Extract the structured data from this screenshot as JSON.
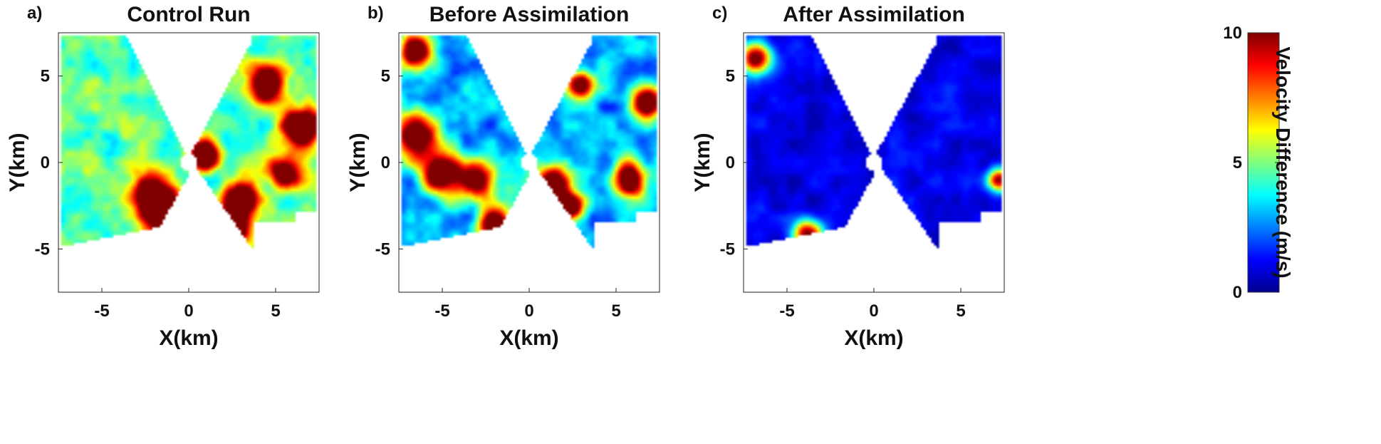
{
  "chart_data": {
    "panels": [
      {
        "type": "heatmap",
        "label": "a)",
        "title": "Control Run",
        "xlabel": "X(km)",
        "ylabel": "Y(km)",
        "xlim": [
          -7.5,
          7.5
        ],
        "ylim": [
          -7.5,
          7.5
        ],
        "xticks": [
          -5,
          0,
          5
        ],
        "yticks": [
          -5,
          0,
          5
        ],
        "field_level": "high",
        "hotspots": [
          {
            "x": -2.0,
            "y": -2.0,
            "r": 1.4,
            "v": 10
          },
          {
            "x": -1.2,
            "y": -3.4,
            "r": 0.9,
            "v": 10
          },
          {
            "x": 0.9,
            "y": 0.4,
            "r": 0.9,
            "v": 10
          },
          {
            "x": 2.6,
            "y": -3.6,
            "r": 0.9,
            "v": 10
          },
          {
            "x": 3.0,
            "y": -2.0,
            "r": 1.0,
            "v": 9
          },
          {
            "x": 4.5,
            "y": 4.5,
            "r": 1.1,
            "v": 9
          },
          {
            "x": 6.5,
            "y": 2.0,
            "r": 1.2,
            "v": 10
          },
          {
            "x": 5.5,
            "y": -0.5,
            "r": 1.0,
            "v": 8
          }
        ]
      },
      {
        "type": "heatmap",
        "label": "b)",
        "title": "Before Assimilation",
        "xlabel": "X(km)",
        "ylabel": "Y(km)",
        "xlim": [
          -7.5,
          7.5
        ],
        "ylim": [
          -7.5,
          7.5
        ],
        "xticks": [
          -5,
          0,
          5
        ],
        "yticks": [
          -5,
          0,
          5
        ],
        "field_level": "medium",
        "hotspots": [
          {
            "x": -6.5,
            "y": 1.5,
            "r": 1.3,
            "v": 10
          },
          {
            "x": -5.0,
            "y": -0.6,
            "r": 1.2,
            "v": 10
          },
          {
            "x": -3.0,
            "y": -1.0,
            "r": 1.1,
            "v": 9
          },
          {
            "x": -2.0,
            "y": -3.6,
            "r": 1.0,
            "v": 10
          },
          {
            "x": -6.5,
            "y": 6.5,
            "r": 1.0,
            "v": 10
          },
          {
            "x": 1.4,
            "y": -1.2,
            "r": 1.1,
            "v": 10
          },
          {
            "x": 2.4,
            "y": -2.6,
            "r": 0.8,
            "v": 9
          },
          {
            "x": 5.8,
            "y": -1.0,
            "r": 1.0,
            "v": 10
          },
          {
            "x": 6.8,
            "y": 3.5,
            "r": 1.0,
            "v": 10
          },
          {
            "x": 3.0,
            "y": 4.5,
            "r": 0.8,
            "v": 9
          }
        ]
      },
      {
        "type": "heatmap",
        "label": "c)",
        "title": "After Assimilation",
        "xlabel": "X(km)",
        "ylabel": "Y(km)",
        "xlim": [
          -7.5,
          7.5
        ],
        "ylim": [
          -7.5,
          7.5
        ],
        "xticks": [
          -5,
          0,
          5
        ],
        "yticks": [
          -5,
          0,
          5
        ],
        "field_level": "low",
        "hotspots": [
          {
            "x": -6.8,
            "y": 6.0,
            "r": 0.9,
            "v": 10
          },
          {
            "x": -3.8,
            "y": -4.2,
            "r": 0.9,
            "v": 10
          },
          {
            "x": 7.2,
            "y": -1.0,
            "r": 0.7,
            "v": 9
          }
        ]
      }
    ],
    "colorbar": {
      "label": "Velocity Difference (m/s)",
      "ticks": [
        0,
        5,
        10
      ],
      "range": [
        0,
        10
      ],
      "colormap": "jet"
    }
  }
}
